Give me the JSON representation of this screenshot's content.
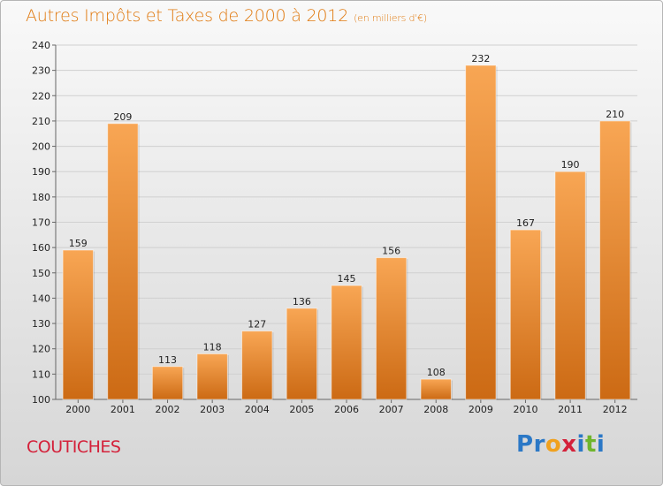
{
  "header": {
    "title": "Autres Impôts et Taxes de 2000 à 2012",
    "subtitle": "(en milliers d'€)"
  },
  "footer": {
    "commune": "COUTICHES",
    "logo_letters": [
      {
        "ch": "P",
        "color": "#2b78c6"
      },
      {
        "ch": "r",
        "color": "#2b78c6"
      },
      {
        "ch": "o",
        "color": "#f0a11e"
      },
      {
        "ch": "x",
        "color": "#d4213a"
      },
      {
        "ch": "i",
        "color": "#2b78c6"
      },
      {
        "ch": "t",
        "color": "#6fb52c"
      },
      {
        "ch": "i",
        "color": "#2b78c6"
      }
    ]
  },
  "colors": {
    "bar_top": "#f8a654",
    "bar_bottom": "#cc6a14",
    "title": "#e07a10",
    "commune": "#d4213a"
  },
  "chart_data": {
    "type": "bar",
    "categories": [
      "2000",
      "2001",
      "2002",
      "2003",
      "2004",
      "2005",
      "2006",
      "2007",
      "2008",
      "2009",
      "2010",
      "2011",
      "2012"
    ],
    "values": [
      159,
      209,
      113,
      118,
      127,
      136,
      145,
      156,
      108,
      232,
      167,
      190,
      210
    ],
    "ylim": [
      100,
      240
    ],
    "yticks": [
      100,
      110,
      120,
      130,
      140,
      150,
      160,
      170,
      180,
      190,
      200,
      210,
      220,
      230,
      240
    ],
    "grid": true,
    "title": "Autres Impôts et Taxes de 2000 à 2012",
    "xlabel": "",
    "ylabel": ""
  }
}
